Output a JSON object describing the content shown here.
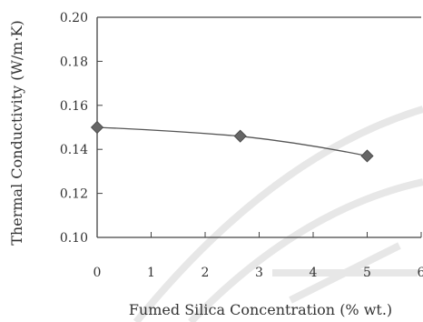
{
  "chart_data": {
    "type": "line",
    "xlabel": "Fumed Silica Concentration (% wt.)",
    "ylabel": "Thermal Conductivity (W/m·K)",
    "xlim": [
      0,
      6
    ],
    "ylim": [
      0.1,
      0.2
    ],
    "xticks": [
      "0",
      "1",
      "2",
      "3",
      "4",
      "5",
      "6"
    ],
    "yticks": [
      "0.10",
      "0.12",
      "0.14",
      "0.16",
      "0.18",
      "0.20"
    ],
    "grid": false,
    "legend": "none",
    "series": [
      {
        "marker": "diamond",
        "x": [
          0,
          2.65,
          5
        ],
        "y": [
          0.15,
          0.146,
          0.137
        ]
      }
    ],
    "colors": {
      "line": "#555555",
      "marker": "#666666",
      "axis": "#444444"
    }
  }
}
